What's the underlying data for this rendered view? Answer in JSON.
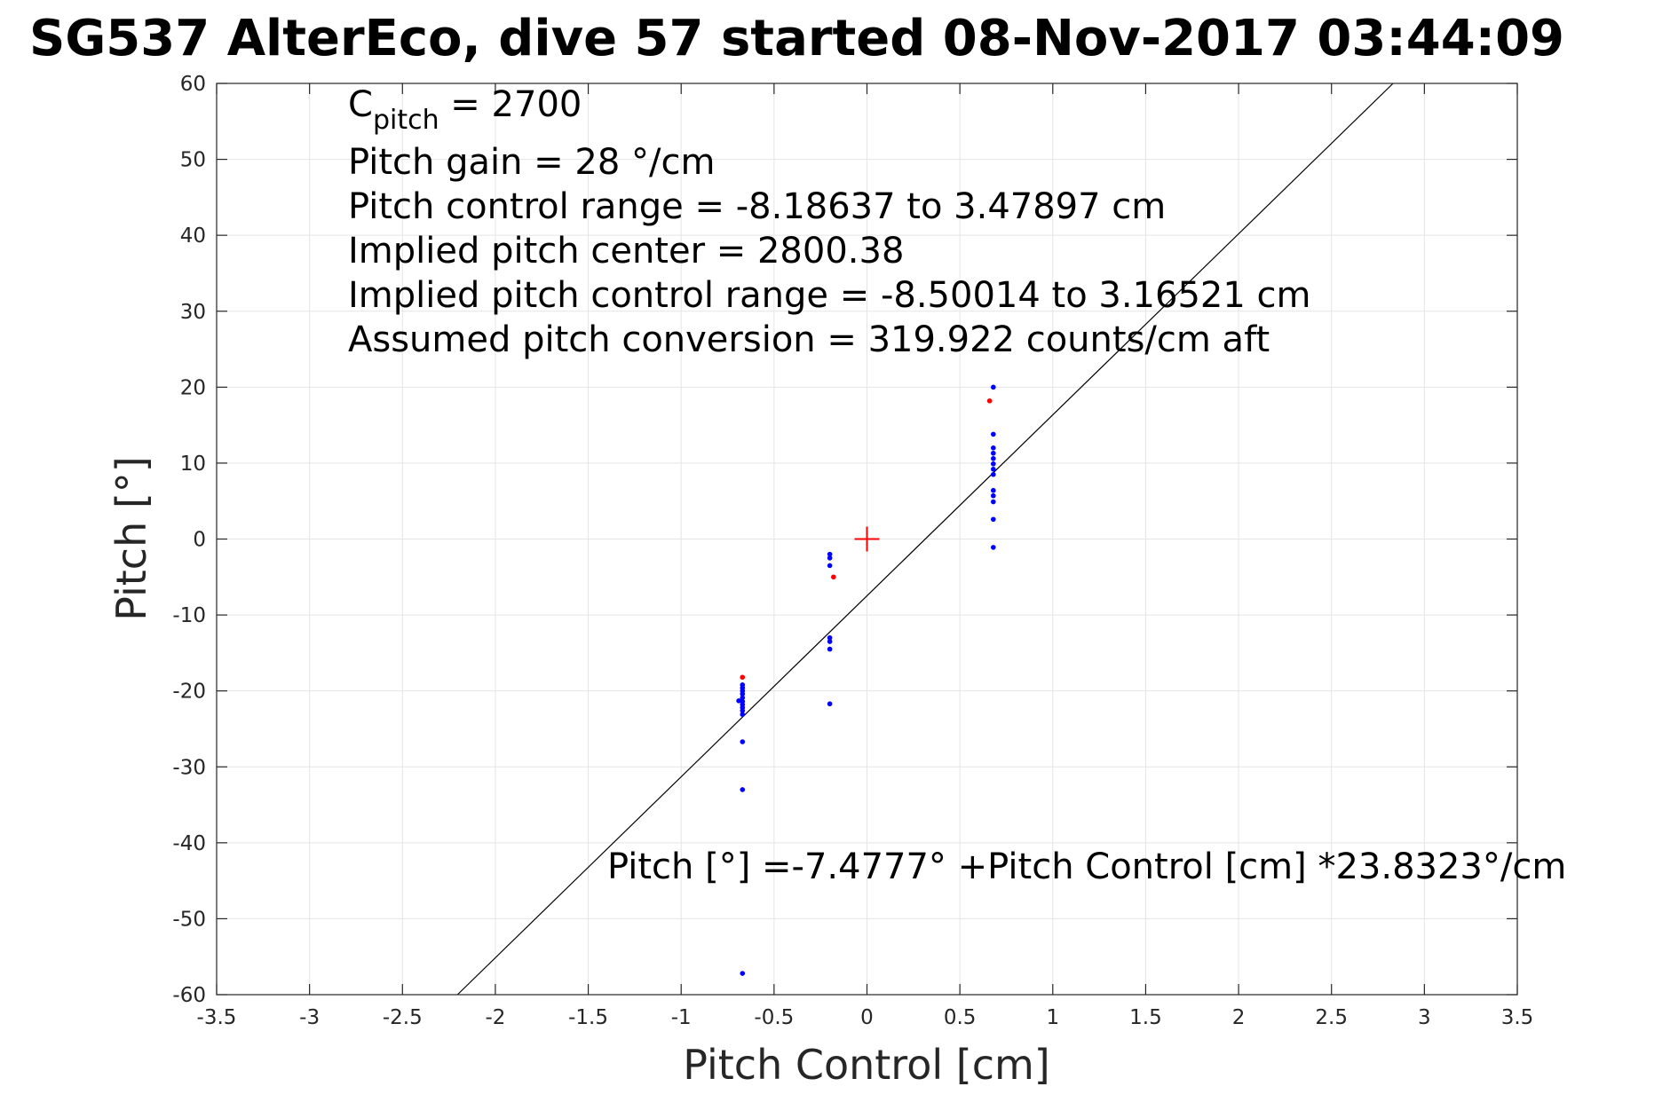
{
  "chart_data": {
    "type": "scatter",
    "title": "SG537 AlterEco, dive 57 started 08-Nov-2017 03:44:09",
    "xlabel": "Pitch Control [cm]",
    "ylabel": "Pitch [°]",
    "xlim": [
      -3.5,
      3.5
    ],
    "ylim": [
      -60,
      60
    ],
    "grid": true,
    "x_ticks": [
      -3.5,
      -3,
      -2.5,
      -2,
      -1.5,
      -1,
      -0.5,
      0,
      0.5,
      1,
      1.5,
      2,
      2.5,
      3,
      3.5
    ],
    "x_tick_labels": [
      "-3.5",
      "-3",
      "-2.5",
      "-2",
      "-1.5",
      "-1",
      "-0.5",
      "0",
      "0.5",
      "1",
      "1.5",
      "2",
      "2.5",
      "3",
      "3.5"
    ],
    "y_ticks": [
      -60,
      -50,
      -40,
      -30,
      -20,
      -10,
      0,
      10,
      20,
      30,
      40,
      50,
      60
    ],
    "y_tick_labels": [
      "-60",
      "-50",
      "-40",
      "-30",
      "-20",
      "-10",
      "0",
      "10",
      "20",
      "30",
      "40",
      "50",
      "60"
    ],
    "colors": {
      "primary": "#0000ff",
      "excluded": "#ff0000",
      "fit": "#000000",
      "center": "#ff0000",
      "grid": "#e5e5e5",
      "axis": "#262626"
    },
    "series": [
      {
        "color": "#0000ff",
        "points": [
          [
            -0.69,
            -21.3
          ],
          [
            -0.67,
            -19.2
          ],
          [
            -0.67,
            -19.6
          ],
          [
            -0.67,
            -20.0
          ],
          [
            -0.67,
            -20.4
          ],
          [
            -0.67,
            -20.9
          ],
          [
            -0.67,
            -21.4
          ],
          [
            -0.67,
            -21.8
          ],
          [
            -0.67,
            -22.2
          ],
          [
            -0.67,
            -22.6
          ],
          [
            -0.67,
            -23.1
          ],
          [
            -0.67,
            -26.7
          ],
          [
            -0.67,
            -33.0
          ],
          [
            -0.67,
            -57.2
          ],
          [
            -0.2,
            -2.0
          ],
          [
            -0.2,
            -2.5
          ],
          [
            -0.2,
            -3.5
          ],
          [
            -0.2,
            -13.0
          ],
          [
            -0.2,
            -13.5
          ],
          [
            -0.2,
            -14.5
          ],
          [
            -0.2,
            -21.7
          ],
          [
            0.68,
            20.0
          ],
          [
            0.68,
            13.8
          ],
          [
            0.68,
            12.0
          ],
          [
            0.68,
            11.3
          ],
          [
            0.68,
            10.6
          ],
          [
            0.68,
            9.9
          ],
          [
            0.68,
            9.2
          ],
          [
            0.68,
            8.5
          ],
          [
            0.68,
            6.4
          ],
          [
            0.68,
            5.7
          ],
          [
            0.68,
            4.9
          ],
          [
            0.68,
            2.6
          ],
          [
            0.68,
            -1.1
          ]
        ]
      },
      {
        "color": "#ff0000",
        "points": [
          [
            -0.67,
            -18.2
          ],
          [
            -0.18,
            -5.0
          ],
          [
            0.66,
            18.2
          ]
        ]
      }
    ],
    "fit_line": {
      "intercept": -7.4777,
      "slope": 23.8323
    },
    "center_marker": {
      "x": 0,
      "y": 0,
      "symbol": "+"
    },
    "annotations": {
      "c_pitch_main": "C",
      "c_pitch_sub": "pitch",
      "c_pitch_value": " = 2700",
      "lines": [
        "Pitch gain = 28 °/cm",
        "Pitch control range = -8.18637 to 3.47897 cm",
        "Implied pitch center = 2800.38",
        "Implied pitch control range = -8.50014 to 3.16521 cm",
        "Assumed pitch conversion = 319.922 counts/cm aft"
      ],
      "fit_equation": "Pitch [°] =-7.4777° +Pitch Control [cm] *23.8323°/cm"
    }
  }
}
